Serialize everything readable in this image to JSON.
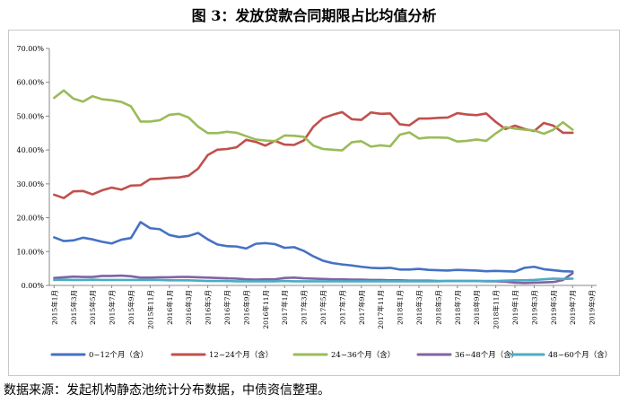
{
  "title": "图 3：发放贷款合同期限占比均值分析",
  "source_note": "数据来源：发起机构静态池统计分布数据，中债资信整理。",
  "chart_data": {
    "type": "line",
    "title": "图 3：发放贷款合同期限占比均值分析",
    "ylim": [
      0,
      70
    ],
    "y_ticks": [
      "0.00%",
      "10.00%",
      "20.00%",
      "30.00%",
      "40.00%",
      "50.00%",
      "60.00%",
      "70.00%"
    ],
    "x_tick_labels": [
      "2015年1月",
      "2015年3月",
      "2015年5月",
      "2015年7月",
      "2015年9月",
      "2015年11月",
      "2016年1月",
      "2016年3月",
      "2016年5月",
      "2016年7月",
      "2016年9月",
      "2016年11月",
      "2017年1月",
      "2017年3月",
      "2017年5月",
      "2017年7月",
      "2017年9月",
      "2017年11月",
      "2018年1月",
      "2018年3月",
      "2018年5月",
      "2018年7月",
      "2018年9月",
      "2018年11月",
      "2019年1月",
      "2019年3月",
      "2019年5月",
      "2019年7月",
      "2019年9月"
    ],
    "x_months": 57,
    "legend_position": "bottom",
    "grid": false,
    "series": [
      {
        "name": "0~12个月（含）",
        "color": "#4472c4",
        "values": [
          14.2,
          13.1,
          13.3,
          14.1,
          13.6,
          12.9,
          12.4,
          13.5,
          14.0,
          18.7,
          16.9,
          16.6,
          14.9,
          14.3,
          14.6,
          15.5,
          13.6,
          12.1,
          11.6,
          11.5,
          10.9,
          12.3,
          12.5,
          12.2,
          11.1,
          11.3,
          10.2,
          8.6,
          7.3,
          6.6,
          6.2,
          5.9,
          5.5,
          5.2,
          5.1,
          5.2,
          4.7,
          4.7,
          4.9,
          4.6,
          4.5,
          4.4,
          4.6,
          4.5,
          4.4,
          4.2,
          4.3,
          4.2,
          4.1,
          5.2,
          5.5,
          4.8,
          4.5,
          4.2,
          4.1,
          null,
          null
        ]
      },
      {
        "name": "12~24个月（含）",
        "color": "#c0504d",
        "values": [
          26.8,
          25.8,
          27.8,
          27.9,
          26.9,
          28.1,
          28.9,
          28.3,
          29.5,
          29.6,
          31.4,
          31.5,
          31.8,
          31.9,
          32.4,
          34.5,
          38.5,
          40.1,
          40.3,
          40.8,
          43.0,
          42.4,
          41.3,
          42.7,
          41.6,
          41.5,
          42.8,
          46.9,
          49.4,
          50.4,
          51.2,
          49.1,
          48.9,
          51.1,
          50.7,
          50.8,
          47.6,
          47.3,
          49.3,
          49.3,
          49.5,
          49.6,
          50.9,
          50.5,
          50.3,
          50.8,
          48.3,
          46.2,
          47.2,
          46.2,
          45.6,
          48.0,
          47.2,
          45.1,
          45.1,
          null,
          null
        ]
      },
      {
        "name": "24~36个月（含）",
        "color": "#9bbb59",
        "values": [
          55.4,
          57.6,
          55.2,
          54.3,
          55.9,
          55.0,
          54.7,
          54.2,
          52.9,
          48.4,
          48.4,
          48.8,
          50.4,
          50.7,
          49.6,
          46.9,
          45.0,
          45.0,
          45.4,
          45.1,
          44.1,
          43.1,
          42.8,
          42.6,
          44.3,
          44.2,
          43.9,
          41.3,
          40.3,
          40.1,
          39.9,
          42.3,
          42.6,
          41.0,
          41.4,
          41.1,
          44.5,
          45.2,
          43.4,
          43.7,
          43.7,
          43.6,
          42.5,
          42.7,
          43.1,
          42.7,
          44.9,
          46.8,
          46.3,
          46.0,
          45.8,
          44.8,
          46.0,
          48.2,
          46.0,
          null,
          null
        ]
      },
      {
        "name": "36~48个月（含）",
        "color": "#8064a2",
        "values": [
          2.2,
          2.4,
          2.6,
          2.5,
          2.5,
          2.8,
          2.8,
          2.9,
          2.7,
          2.3,
          2.3,
          2.4,
          2.4,
          2.5,
          2.5,
          2.4,
          2.3,
          2.2,
          2.1,
          2.0,
          1.8,
          1.7,
          1.8,
          1.8,
          2.2,
          2.3,
          2.1,
          2.0,
          1.9,
          1.8,
          1.8,
          1.7,
          1.7,
          1.6,
          1.6,
          1.5,
          1.5,
          1.4,
          1.4,
          1.4,
          1.3,
          1.3,
          1.3,
          1.3,
          1.3,
          1.2,
          1.2,
          1.1,
          0.8,
          0.7,
          0.8,
          0.9,
          1.0,
          1.6,
          3.6,
          null,
          null
        ]
      },
      {
        "name": "48~60个月（含）",
        "color": "#4bacc6",
        "values": [
          1.6,
          1.7,
          1.6,
          1.6,
          1.7,
          1.6,
          1.6,
          1.6,
          1.6,
          1.6,
          1.6,
          1.6,
          1.5,
          1.5,
          1.5,
          1.4,
          1.3,
          1.3,
          1.3,
          1.2,
          1.2,
          1.2,
          1.2,
          1.2,
          1.3,
          1.2,
          1.2,
          1.2,
          1.2,
          1.2,
          1.2,
          1.2,
          1.2,
          1.2,
          1.2,
          1.2,
          1.2,
          1.2,
          1.2,
          1.2,
          1.2,
          1.3,
          1.3,
          1.3,
          1.3,
          1.3,
          1.3,
          1.4,
          1.5,
          1.5,
          1.6,
          1.8,
          2.0,
          1.9,
          2.0,
          null,
          null
        ]
      }
    ]
  }
}
